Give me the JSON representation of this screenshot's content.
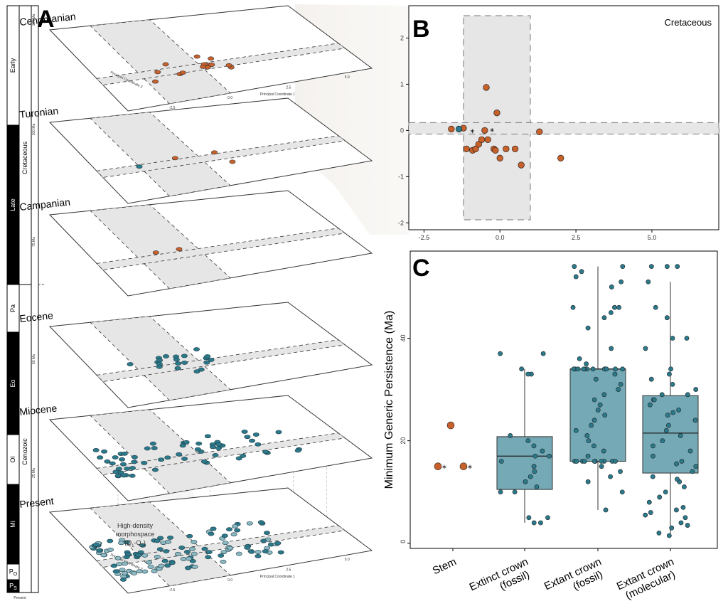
{
  "panels": {
    "a": "A",
    "b": "B",
    "c": "C"
  },
  "colors": {
    "stem": "#c8602a",
    "crown": "#2b7a8c",
    "box_fill": "#74a9b5",
    "shade": "#e6e6e6"
  },
  "timescale": {
    "top_labels": [
      {
        "text": "Early",
        "fill": "#ffffff",
        "text_color": "#000000"
      },
      {
        "text": "Late",
        "fill": "#000000",
        "text_color": "#ffffff"
      },
      {
        "text": "Pa",
        "fill": "#ffffff",
        "text_color": "#000000"
      },
      {
        "text": "Eo",
        "fill": "#000000",
        "text_color": "#ffffff"
      },
      {
        "text": "Ol",
        "fill": "#ffffff",
        "text_color": "#000000"
      },
      {
        "text": "Mi",
        "fill": "#000000",
        "text_color": "#ffffff"
      },
      {
        "text": "P",
        "sub": "O",
        "fill": "#ffffff",
        "text_color": "#000000"
      },
      {
        "text": "P",
        "sub": "S",
        "fill": "#000000",
        "text_color": "#ffffff"
      }
    ],
    "eras": [
      "Cretaceous",
      "Cenozoic"
    ],
    "ma_ticks": [
      "125 Ma",
      "100 Ma",
      "75 Ma",
      "50 Ma",
      "25 Ma",
      "Present"
    ]
  },
  "layers": [
    {
      "name": "Cenomanian",
      "points_stem": 14,
      "points_crown": 0
    },
    {
      "name": "Turonian",
      "points_stem": 3,
      "points_crown": 1
    },
    {
      "name": "Campanian",
      "points_stem": 2,
      "points_crown": 0
    },
    {
      "name": "Eocene",
      "points_stem": 0,
      "points_crown": 20
    },
    {
      "name": "Miocene",
      "points_stem": 0,
      "points_crown": 60
    },
    {
      "name": "Present",
      "points_stem": 0,
      "points_crown": 120
    }
  ],
  "layer_axes": {
    "x_title": "Principal Coordinate 1",
    "y_title": "Principal Coordinate 2",
    "x_ticks": [
      "-2.5",
      "0.0",
      "2.5",
      "5.0"
    ],
    "y_ticks": [
      "-2",
      "-1",
      "0",
      "1",
      "2"
    ]
  },
  "hd_label": {
    "line1": "High-density",
    "line2": "morphospace",
    "line3": "(Q",
    "q1": "1",
    "mid": "-Q",
    "q3": "3",
    "end": ")"
  },
  "chart_data": [
    {
      "type": "scatter",
      "panel": "B",
      "annotation": "Cretaceous",
      "xlim": [
        -3,
        7.2
      ],
      "ylim": [
        -2.15,
        2.7
      ],
      "x_ticks": [
        -2.5,
        0.0,
        2.5,
        5.0
      ],
      "x_tick_labels": [
        "-2.5",
        "0.0",
        "2.5",
        "5.0"
      ],
      "y_ticks": [
        -2,
        -1,
        0,
        1,
        2
      ],
      "y_tick_labels": [
        "-2",
        "-1",
        "0",
        "1",
        "2"
      ],
      "shade_x": [
        -1.2,
        1.0
      ],
      "shade_y": [
        -0.08,
        0.17
      ],
      "series": [
        {
          "group": "stem",
          "points": [
            [
              -1.6,
              0.03
            ],
            [
              -1.2,
              0.05
            ],
            [
              -1.1,
              -0.4
            ],
            [
              -0.9,
              -0.43
            ],
            [
              -0.8,
              -0.4
            ],
            [
              -0.7,
              -0.3
            ],
            [
              -0.6,
              -0.2
            ],
            [
              -0.5,
              0.0
            ],
            [
              -0.45,
              0.93
            ],
            [
              -0.4,
              -0.2
            ],
            [
              -0.2,
              -0.4
            ],
            [
              -0.15,
              -0.43
            ],
            [
              -0.1,
              0.38
            ],
            [
              0.0,
              -0.6
            ],
            [
              0.2,
              -0.4
            ],
            [
              0.5,
              -0.4
            ],
            [
              0.7,
              -0.75
            ],
            [
              1.3,
              -0.03
            ],
            [
              2.0,
              -0.6
            ]
          ]
        },
        {
          "group": "crown",
          "points": [
            [
              -1.35,
              0.03
            ]
          ]
        }
      ],
      "stars": [
        [
          -1.05,
          0.0
        ],
        [
          -0.4,
          0.02
        ]
      ]
    },
    {
      "type": "box",
      "panel": "C",
      "ylabel": "Minimum Generic Persistence (Ma)",
      "ylim": [
        -1,
        57
      ],
      "y_ticks": [
        0,
        20,
        40
      ],
      "y_tick_labels": [
        "0",
        "20",
        "40"
      ],
      "categories": [
        {
          "label": [
            "Stem"
          ],
          "box": null,
          "points": [
            15,
            15,
            23
          ],
          "stars": 2
        },
        {
          "label": [
            "Extinct crown",
            "(fossil)"
          ],
          "box": {
            "q1": 10.5,
            "median": 17,
            "q3": 20.8,
            "min": 4,
            "max": 34
          },
          "points": [
            4,
            4,
            5,
            5,
            10,
            10,
            11,
            12,
            13,
            14,
            15,
            16,
            17,
            17,
            18,
            19,
            20,
            21,
            33,
            33,
            34,
            37,
            37
          ]
        },
        {
          "label": [
            "Extant crown",
            "(fossil)"
          ],
          "box": {
            "q1": 16,
            "median": 34,
            "q3": 34,
            "min": 6.5,
            "max": 54
          },
          "points": [
            6.5,
            10,
            12,
            13,
            14,
            15,
            16,
            16,
            16,
            16,
            16,
            16,
            16,
            16,
            16,
            16,
            17,
            18,
            19,
            20,
            21,
            22,
            23,
            24,
            25,
            26,
            27,
            28,
            29,
            30,
            31,
            32,
            33,
            34,
            34,
            34,
            34,
            34,
            34,
            34,
            34,
            34,
            34,
            34,
            34,
            35,
            36,
            38,
            42,
            44,
            45,
            46,
            46,
            46,
            50,
            51,
            52,
            53,
            54,
            54
          ]
        },
        {
          "label": [
            "Extant crown",
            "(molecular)"
          ],
          "box": {
            "q1": 13.7,
            "median": 21.5,
            "q3": 28.8,
            "min": 1.5,
            "max": 51
          },
          "points": [
            1.5,
            2,
            3,
            3.5,
            4,
            5,
            5.5,
            6,
            6.5,
            7,
            8,
            9,
            10,
            11,
            12,
            12.5,
            13,
            14,
            15,
            15.5,
            16,
            17,
            18,
            19,
            20,
            21,
            22,
            23,
            24,
            25,
            25.5,
            26,
            27,
            28,
            28,
            29,
            29,
            30,
            31,
            32,
            33,
            34,
            38,
            40,
            40,
            44,
            46,
            51,
            54,
            54,
            54
          ]
        }
      ]
    }
  ]
}
